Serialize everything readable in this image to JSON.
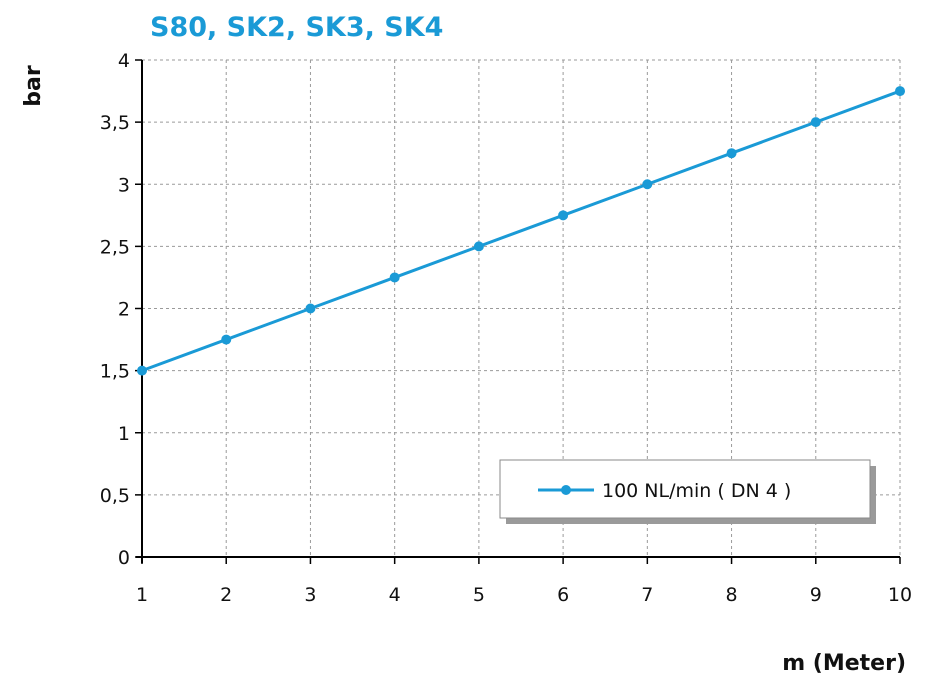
{
  "chart_data": {
    "type": "line",
    "title": "S80, SK2, SK3, SK4",
    "xlabel": "m (Meter)",
    "ylabel": "bar",
    "xlim": [
      1,
      10
    ],
    "ylim": [
      0,
      4
    ],
    "x_ticks": [
      1,
      2,
      3,
      4,
      5,
      6,
      7,
      8,
      9,
      10
    ],
    "y_ticks": [
      0,
      0.5,
      1,
      1.5,
      2,
      2.5,
      3,
      3.5,
      4
    ],
    "y_tick_labels": [
      "0",
      "0,5",
      "1",
      "1,5",
      "2",
      "2,5",
      "3",
      "3,5",
      "4"
    ],
    "x_tick_labels": [
      "1",
      "2",
      "3",
      "4",
      "5",
      "6",
      "7",
      "8",
      "9",
      "10"
    ],
    "grid": true,
    "legend_position": "bottom-right",
    "series": [
      {
        "name": "100 NL/min ( DN 4 )",
        "color": "#1a9ad6",
        "x": [
          1,
          2,
          3,
          4,
          5,
          6,
          7,
          8,
          9,
          10
        ],
        "y": [
          1.5,
          1.75,
          2.0,
          2.25,
          2.5,
          2.75,
          3.0,
          3.25,
          3.5,
          3.75
        ]
      }
    ]
  }
}
